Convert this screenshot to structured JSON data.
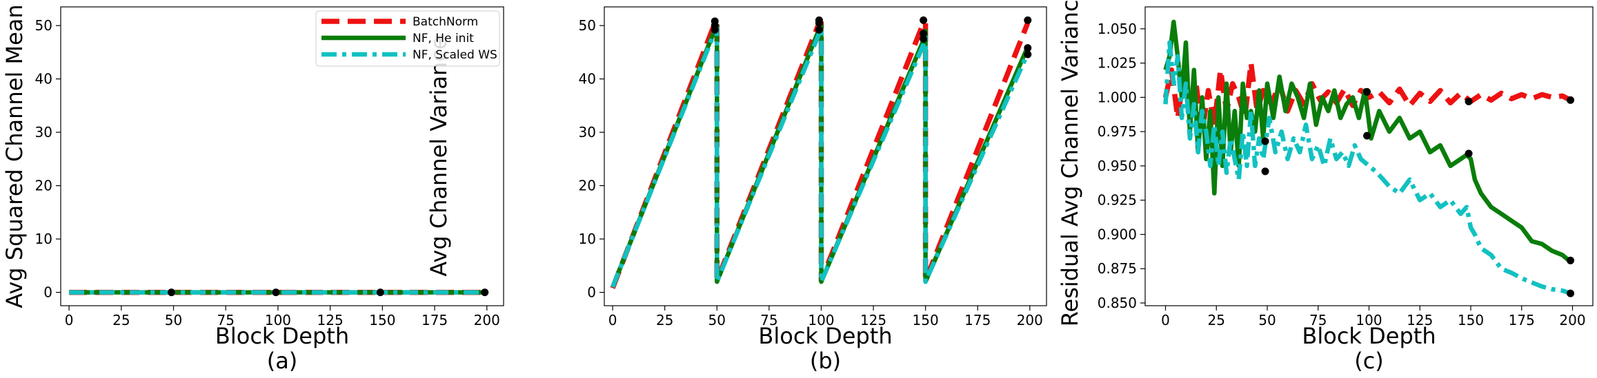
{
  "colors": {
    "batchnorm": "#ee1111",
    "he_init": "#0a7d0a",
    "scaled_ws": "#12c1c1",
    "endpoint": "#000000"
  },
  "legend": {
    "placement": "upper-right",
    "entries": [
      "BatchNorm",
      "NF, He init",
      "NF, Scaled WS"
    ]
  },
  "chart_data": [
    {
      "type": "line",
      "caption": "(a)",
      "xlabel": "Block Depth",
      "ylabel": "Avg Squared Channel Mean",
      "xlim": [
        -4,
        208
      ],
      "ylim": [
        -2.5,
        53.5
      ],
      "xticks": [
        0,
        25,
        50,
        75,
        100,
        125,
        150,
        175,
        200
      ],
      "yticks": [
        0,
        10,
        20,
        30,
        40,
        50
      ],
      "grid": false,
      "series": [
        {
          "name": "BatchNorm",
          "x": [
            0,
            200
          ],
          "y": [
            0,
            0
          ]
        },
        {
          "name": "NF, He init",
          "x": [
            0,
            200
          ],
          "y": [
            0,
            0
          ]
        },
        {
          "name": "NF, Scaled WS",
          "x": [
            0,
            200
          ],
          "y": [
            0,
            0
          ]
        }
      ],
      "endpoints": {
        "x": [
          49,
          99,
          149,
          199
        ],
        "y": [
          0,
          0,
          0,
          0
        ]
      }
    },
    {
      "type": "line",
      "caption": "(b)",
      "xlabel": "Block Depth",
      "ylabel": "Avg Channel Variance",
      "xlim": [
        -4,
        208
      ],
      "ylim": [
        -2.5,
        53.5
      ],
      "xticks": [
        0,
        25,
        50,
        75,
        100,
        125,
        150,
        175,
        200
      ],
      "yticks": [
        0,
        10,
        20,
        30,
        40,
        50
      ],
      "grid": false,
      "series": [
        {
          "name": "BatchNorm",
          "x": [
            0,
            49,
            50,
            50,
            99,
            100,
            100,
            149,
            150,
            150,
            199
          ],
          "y": [
            0.8,
            50.5,
            50.5,
            2.2,
            50.5,
            50.5,
            2.2,
            50.5,
            50.5,
            2.2,
            50.5
          ]
        },
        {
          "name": "NF, He init",
          "x": [
            0,
            49,
            50,
            50,
            99,
            100,
            100,
            149,
            150,
            150,
            199
          ],
          "y": [
            1.0,
            49.3,
            50.0,
            2.0,
            49.3,
            50.0,
            2.0,
            47.2,
            49.0,
            2.0,
            46.0
          ]
        },
        {
          "name": "NF, Scaled WS",
          "x": [
            0,
            49,
            50,
            50,
            99,
            100,
            100,
            149,
            150,
            150,
            199
          ],
          "y": [
            1.0,
            48.9,
            49.6,
            2.0,
            48.5,
            49.3,
            2.0,
            46.4,
            47.8,
            2.0,
            44.8
          ]
        }
      ],
      "endpoints": {
        "x": [
          49,
          49,
          49,
          99,
          99,
          99,
          149,
          149,
          149,
          199,
          199,
          199
        ],
        "y": [
          50.8,
          50.0,
          49.2,
          51.0,
          50.5,
          49.2,
          51.0,
          48.5,
          47.5,
          51.0,
          45.8,
          44.6
        ]
      }
    },
    {
      "type": "line",
      "caption": "(c)",
      "xlabel": "Block Depth",
      "ylabel": "Residual Avg Channel Variance",
      "xlim": [
        -10,
        210
      ],
      "ylim": [
        0.848,
        1.066
      ],
      "xticks": [
        0,
        25,
        50,
        75,
        100,
        125,
        150,
        175,
        200
      ],
      "yticks": [
        0.85,
        0.875,
        0.9,
        0.925,
        0.95,
        0.975,
        1.0,
        1.025,
        1.05
      ],
      "yticklabels": [
        "0.850",
        "0.875",
        "0.900",
        "0.925",
        "0.950",
        "0.975",
        "1.000",
        "1.025",
        "1.050"
      ],
      "grid": false,
      "series": [
        {
          "name": "BatchNorm",
          "x": [
            0,
            3,
            6,
            9,
            12,
            15,
            18,
            21,
            24,
            27,
            30,
            33,
            36,
            39,
            42,
            45,
            48,
            52,
            56,
            60,
            64,
            68,
            72,
            76,
            80,
            84,
            88,
            92,
            96,
            100,
            105,
            110,
            115,
            120,
            125,
            130,
            135,
            140,
            145,
            150,
            155,
            160,
            165,
            170,
            175,
            180,
            185,
            190,
            195,
            199
          ],
          "y": [
            1.0,
            1.02,
            0.985,
            1.015,
            0.99,
            1.01,
            0.975,
            1.005,
            0.98,
            1.02,
            0.99,
            1.01,
            1.0,
            0.985,
            1.025,
            0.99,
            1.005,
            0.995,
            1.01,
            0.99,
            1.005,
            0.995,
            1.01,
            0.998,
            1.004,
            0.996,
            1.006,
            0.994,
            1.005,
            1.0,
            1.004,
            0.996,
            1.006,
            0.994,
            1.003,
            0.997,
            1.005,
            0.996,
            1.003,
            0.997,
            1.002,
            0.998,
            1.003,
            0.999,
            1.002,
            0.999,
            1.002,
            1.0,
            1.001,
            0.998
          ]
        },
        {
          "name": "NF, He init",
          "x": [
            0,
            2,
            4,
            6,
            8,
            10,
            12,
            14,
            16,
            18,
            20,
            22,
            24,
            26,
            28,
            30,
            32,
            34,
            36,
            38,
            40,
            42,
            44,
            46,
            48,
            50,
            53,
            56,
            59,
            62,
            65,
            68,
            71,
            74,
            77,
            80,
            83,
            86,
            89,
            92,
            95,
            98,
            101,
            105,
            110,
            115,
            120,
            125,
            130,
            135,
            140,
            145,
            148,
            150,
            152,
            155,
            160,
            165,
            170,
            175,
            180,
            185,
            190,
            195,
            199
          ],
          "y": [
            1.02,
            1.03,
            1.055,
            1.03,
            1.0,
            1.04,
            0.975,
            1.02,
            0.96,
            1.0,
            0.955,
            0.99,
            0.93,
            1.0,
            0.95,
            1.01,
            0.96,
            0.99,
            0.95,
            1.01,
            0.985,
            0.99,
            0.975,
            1.005,
            0.97,
            1.01,
            0.985,
            1.015,
            0.99,
            1.01,
            1.0,
            0.985,
            1.01,
            0.98,
            1.0,
            0.99,
            1.005,
            0.985,
            0.995,
            1.0,
            0.985,
            1.005,
            0.97,
            0.99,
            0.975,
            0.985,
            0.97,
            0.975,
            0.96,
            0.965,
            0.95,
            0.955,
            0.958,
            0.955,
            0.94,
            0.93,
            0.92,
            0.915,
            0.91,
            0.905,
            0.895,
            0.893,
            0.888,
            0.885,
            0.88
          ]
        },
        {
          "name": "NF, Scaled WS",
          "x": [
            0,
            2,
            4,
            6,
            8,
            10,
            12,
            14,
            16,
            18,
            20,
            22,
            24,
            26,
            28,
            30,
            32,
            34,
            36,
            38,
            40,
            42,
            44,
            46,
            48,
            51,
            54,
            57,
            60,
            63,
            66,
            69,
            72,
            75,
            78,
            81,
            84,
            87,
            90,
            93,
            96,
            100,
            104,
            110,
            115,
            120,
            125,
            130,
            135,
            140,
            145,
            148,
            150,
            152,
            155,
            160,
            165,
            170,
            175,
            180,
            185,
            190,
            195,
            199
          ],
          "y": [
            0.995,
            1.04,
            1.01,
            1.03,
            0.985,
            1.01,
            0.97,
            0.995,
            0.96,
            0.99,
            0.975,
            0.95,
            0.98,
            0.95,
            0.975,
            0.945,
            0.97,
            0.955,
            0.94,
            0.975,
            0.95,
            0.99,
            0.95,
            0.97,
            0.955,
            0.985,
            0.96,
            0.975,
            0.955,
            0.97,
            0.96,
            0.98,
            0.955,
            0.965,
            0.95,
            0.97,
            0.955,
            0.96,
            0.95,
            0.965,
            0.955,
            0.95,
            0.945,
            0.935,
            0.93,
            0.94,
            0.925,
            0.93,
            0.92,
            0.925,
            0.915,
            0.92,
            0.905,
            0.9,
            0.89,
            0.885,
            0.875,
            0.872,
            0.868,
            0.865,
            0.862,
            0.86,
            0.859,
            0.857
          ]
        }
      ],
      "endpoints": {
        "x": [
          49,
          49,
          99,
          99,
          149,
          149,
          199,
          199,
          199
        ],
        "y": [
          0.968,
          0.946,
          1.004,
          0.972,
          0.997,
          0.959,
          0.998,
          0.881,
          0.857
        ]
      }
    }
  ]
}
